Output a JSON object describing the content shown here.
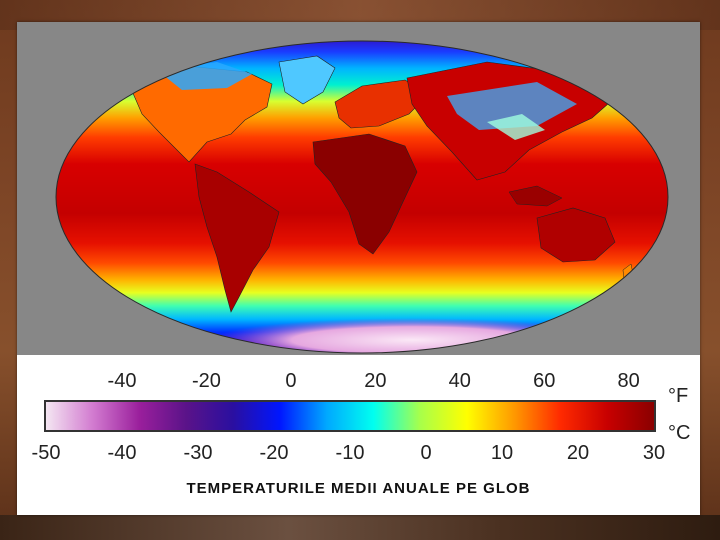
{
  "map": {
    "legend": {
      "fahrenheit_unit": "°F",
      "celsius_unit": "°C",
      "fahrenheit_ticks": [
        "-40",
        "-20",
        "0",
        "20",
        "40",
        "60",
        "80"
      ],
      "celsius_ticks": [
        "-50",
        "-40",
        "-30",
        "-20",
        "-10",
        "0",
        "10",
        "20",
        "30"
      ],
      "celsius_range": [
        -50,
        30
      ],
      "colors": [
        "#f4e6f2",
        "#d27bd0",
        "#9a1f9c",
        "#5a1389",
        "#2a0fa0",
        "#0016ff",
        "#00a8ff",
        "#00fff0",
        "#a8ff4a",
        "#ffff00",
        "#ff9a00",
        "#ff2a00",
        "#c80000",
        "#8a0000"
      ]
    },
    "caption": "TEMPERATURILE MEDII ANUALE PE GLOB"
  }
}
